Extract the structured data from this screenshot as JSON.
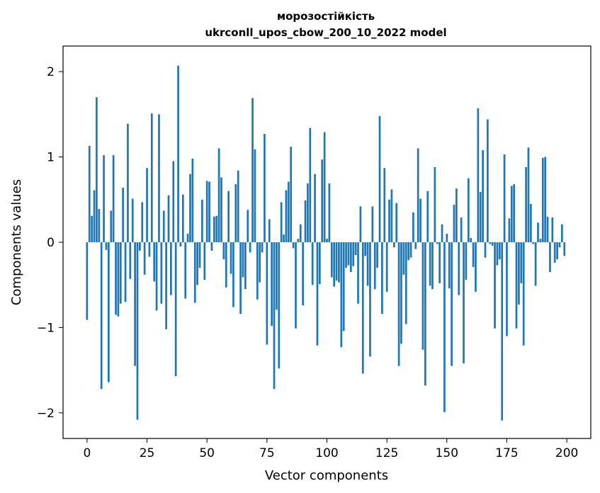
{
  "chart_data": {
    "type": "bar",
    "title": "морозостійкість",
    "subtitle": "ukrconll_upos_cbow_200_10_2022 model",
    "xlabel": "Vector components",
    "ylabel": "Components values",
    "xlim": [
      -10,
      210
    ],
    "ylim": [
      -2.3,
      2.3
    ],
    "x_ticks": [
      0,
      25,
      50,
      75,
      100,
      125,
      150,
      175,
      200
    ],
    "y_ticks": [
      -2,
      -1,
      0,
      1,
      2
    ],
    "y_tick_labels": [
      "−2",
      "−1",
      "0",
      "1",
      "2"
    ],
    "grid": false,
    "legend": "none",
    "bar_color": "#1f77b4",
    "values": [
      -0.91,
      1.13,
      0.31,
      0.61,
      1.7,
      0.39,
      -1.72,
      1.02,
      -0.09,
      -1.64,
      0.37,
      1.02,
      -0.85,
      -0.87,
      -0.72,
      0.64,
      -0.7,
      1.39,
      -0.43,
      0.51,
      -1.45,
      -2.08,
      -0.1,
      0.47,
      -0.38,
      0.87,
      -0.17,
      1.51,
      -0.46,
      -0.8,
      1.5,
      -0.72,
      0.37,
      -1.02,
      0.55,
      -0.62,
      0.95,
      -1.57,
      2.07,
      -0.05,
      0.56,
      -0.66,
      0.1,
      0.8,
      0.98,
      -0.71,
      -0.5,
      -0.3,
      0.5,
      -0.44,
      0.72,
      0.71,
      -0.1,
      0.3,
      0.31,
      1.1,
      0.76,
      -0.2,
      -0.53,
      0.6,
      -0.37,
      -0.76,
      0.68,
      0.84,
      -0.84,
      -0.41,
      -0.55,
      0.38,
      -0.12,
      1.69,
      1.09,
      -0.67,
      -0.47,
      -0.12,
      1.27,
      -1.2,
      0.27,
      -0.98,
      -1.72,
      -0.79,
      -1.48,
      0.47,
      0.09,
      0.61,
      0.71,
      1.12,
      -0.07,
      -1.01,
      0.04,
      0.21,
      -0.74,
      0.49,
      0.69,
      1.34,
      -0.5,
      0.8,
      -1.21,
      -0.49,
      0.97,
      1.29,
      0.04,
      0.69,
      -0.41,
      -0.52,
      -0.45,
      -0.47,
      -1.23,
      -1.04,
      -0.3,
      -0.27,
      -0.35,
      -0.28,
      -0.15,
      -0.72,
      0.42,
      -1.54,
      -0.16,
      -0.51,
      -1.34,
      0.42,
      -0.55,
      -0.3,
      1.48,
      -0.84,
      0.87,
      -0.58,
      0.5,
      0.62,
      -0.06,
      0.46,
      -1.45,
      -1.19,
      -0.38,
      -0.96,
      -0.21,
      -0.18,
      0.35,
      -0.08,
      1.1,
      0.51,
      -1.26,
      -1.68,
      0.6,
      -0.51,
      -0.55,
      0.88,
      -0.02,
      -0.48,
      0.21,
      -1.99,
      0.1,
      -0.54,
      -1.45,
      0.44,
      0.63,
      -0.62,
      0.29,
      -1.42,
      -0.44,
      0.75,
      0.05,
      -0.29,
      -0.58,
      1.57,
      0.59,
      1.08,
      -0.18,
      1.44,
      -0.02,
      -0.04,
      -1.01,
      -0.27,
      -0.2,
      -2.09,
      1.03,
      -1.1,
      0.28,
      0.66,
      0.68,
      -1.01,
      -0.73,
      -0.48,
      -1.21,
      0.88,
      1.11,
      0.45,
      -0.02,
      -0.51,
      0.23,
      0.04,
      0.99,
      1.0,
      0.3,
      -0.35,
      0.29,
      -0.24,
      -0.2,
      -0.06,
      0.21,
      -0.16
    ]
  }
}
